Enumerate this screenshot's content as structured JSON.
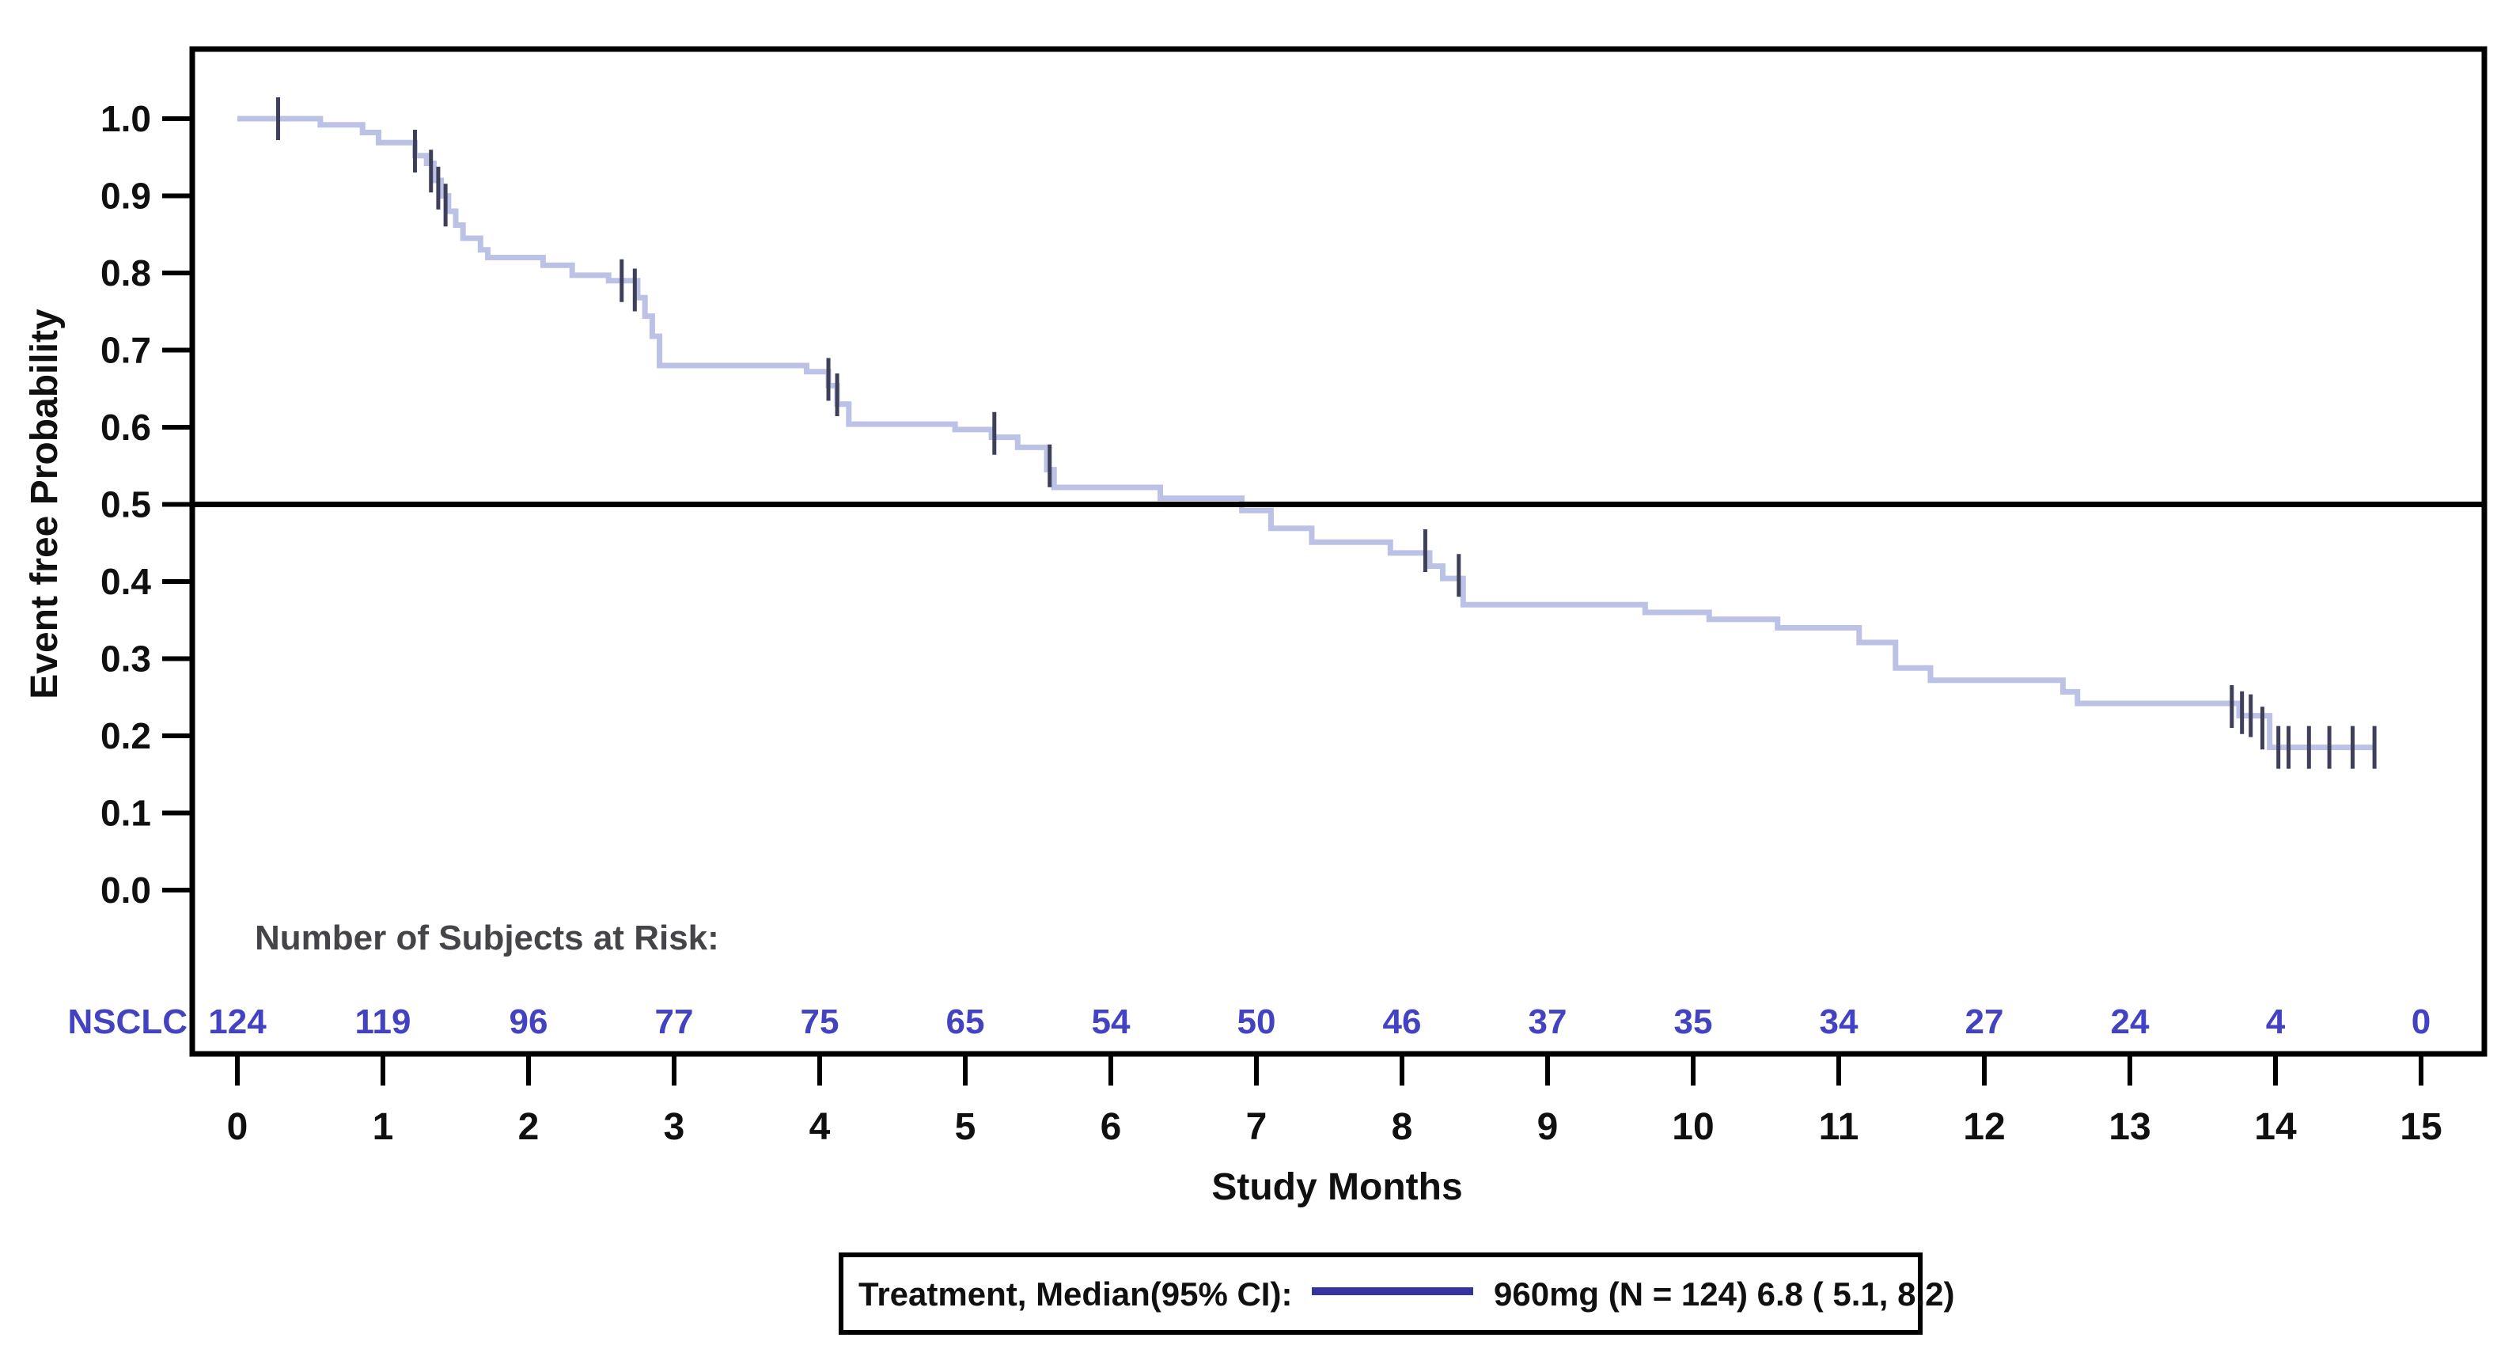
{
  "figure": {
    "background": "#ffffff"
  },
  "chart_data": {
    "type": "line",
    "subtype": "kaplan-meier-step",
    "title": "",
    "xlabel": "Study Months",
    "ylabel": "Event free Probability",
    "xlim": [
      0,
      15
    ],
    "ylim": [
      0.0,
      1.0
    ],
    "grid": false,
    "xticks": [
      0,
      1,
      2,
      3,
      4,
      5,
      6,
      7,
      8,
      9,
      10,
      11,
      12,
      13,
      14,
      15
    ],
    "ytick_labels": [
      "1.0",
      "0.9",
      "0.8",
      "0.7",
      "0.6",
      "0.5",
      "0.4",
      "0.3",
      "0.2",
      "0.1",
      "0.0"
    ],
    "ytick_values": [
      1.0,
      0.9,
      0.8,
      0.7,
      0.6,
      0.5,
      0.4,
      0.3,
      0.2,
      0.1,
      0.0
    ],
    "reference_line_y": 0.5,
    "series": [
      {
        "name": "960mg",
        "color": "#bcc1e6",
        "end_time": 14.69,
        "points": [
          [
            0.0,
            1.0
          ],
          [
            0.57,
            0.992
          ],
          [
            0.86,
            0.982
          ],
          [
            0.97,
            0.969
          ],
          [
            1.22,
            0.952
          ],
          [
            1.3,
            0.942
          ],
          [
            1.35,
            0.92
          ],
          [
            1.4,
            0.9
          ],
          [
            1.45,
            0.88
          ],
          [
            1.5,
            0.862
          ],
          [
            1.55,
            0.845
          ],
          [
            1.67,
            0.83
          ],
          [
            1.72,
            0.82
          ],
          [
            2.1,
            0.81
          ],
          [
            2.3,
            0.797
          ],
          [
            2.55,
            0.79
          ],
          [
            2.75,
            0.768
          ],
          [
            2.8,
            0.744
          ],
          [
            2.85,
            0.718
          ],
          [
            2.9,
            0.68
          ],
          [
            3.91,
            0.672
          ],
          [
            4.06,
            0.654
          ],
          [
            4.12,
            0.63
          ],
          [
            4.2,
            0.604
          ],
          [
            4.93,
            0.597
          ],
          [
            5.18,
            0.587
          ],
          [
            5.36,
            0.574
          ],
          [
            5.56,
            0.545
          ],
          [
            5.61,
            0.522
          ],
          [
            6.34,
            0.508
          ],
          [
            6.9,
            0.492
          ],
          [
            7.1,
            0.469
          ],
          [
            7.38,
            0.451
          ],
          [
            7.92,
            0.437
          ],
          [
            8.19,
            0.42
          ],
          [
            8.28,
            0.404
          ],
          [
            8.42,
            0.37
          ],
          [
            9.67,
            0.36
          ],
          [
            10.11,
            0.351
          ],
          [
            10.58,
            0.34
          ],
          [
            11.14,
            0.321
          ],
          [
            11.39,
            0.288
          ],
          [
            11.63,
            0.272
          ],
          [
            12.54,
            0.257
          ],
          [
            12.64,
            0.242
          ],
          [
            13.75,
            0.226
          ],
          [
            13.96,
            0.185
          ]
        ]
      }
    ],
    "censor_marks": {
      "color": "#3e3f58",
      "points": [
        [
          0.28,
          1.0
        ],
        [
          1.22,
          0.958
        ],
        [
          1.33,
          0.932
        ],
        [
          1.38,
          0.91
        ],
        [
          1.43,
          0.888
        ],
        [
          2.64,
          0.79
        ],
        [
          2.73,
          0.778
        ],
        [
          4.06,
          0.662
        ],
        [
          4.12,
          0.642
        ],
        [
          5.2,
          0.592
        ],
        [
          5.58,
          0.55
        ],
        [
          8.16,
          0.44
        ],
        [
          8.39,
          0.408
        ],
        [
          13.7,
          0.238
        ],
        [
          13.77,
          0.23
        ],
        [
          13.83,
          0.226
        ],
        [
          13.91,
          0.21
        ],
        [
          14.02,
          0.185
        ],
        [
          14.09,
          0.185
        ],
        [
          14.23,
          0.185
        ],
        [
          14.37,
          0.185
        ],
        [
          14.53,
          0.185
        ],
        [
          14.68,
          0.185
        ]
      ]
    },
    "at_risk": {
      "note": "Number of Subjects at Risk:",
      "label": "NSCLC",
      "color": "#4343c2",
      "values": [
        124,
        119,
        96,
        77,
        75,
        65,
        54,
        50,
        46,
        37,
        35,
        34,
        27,
        24,
        4,
        0
      ]
    },
    "legend": {
      "label": "Treatment, Median(95% CI):",
      "entry": "960mg (N = 124) 6.8 ( 5.1, 8.2)",
      "line_color": "#3434a0",
      "position": "bottom-center"
    },
    "colors": {
      "axis": "#000000",
      "reference_line": "#000000"
    }
  }
}
